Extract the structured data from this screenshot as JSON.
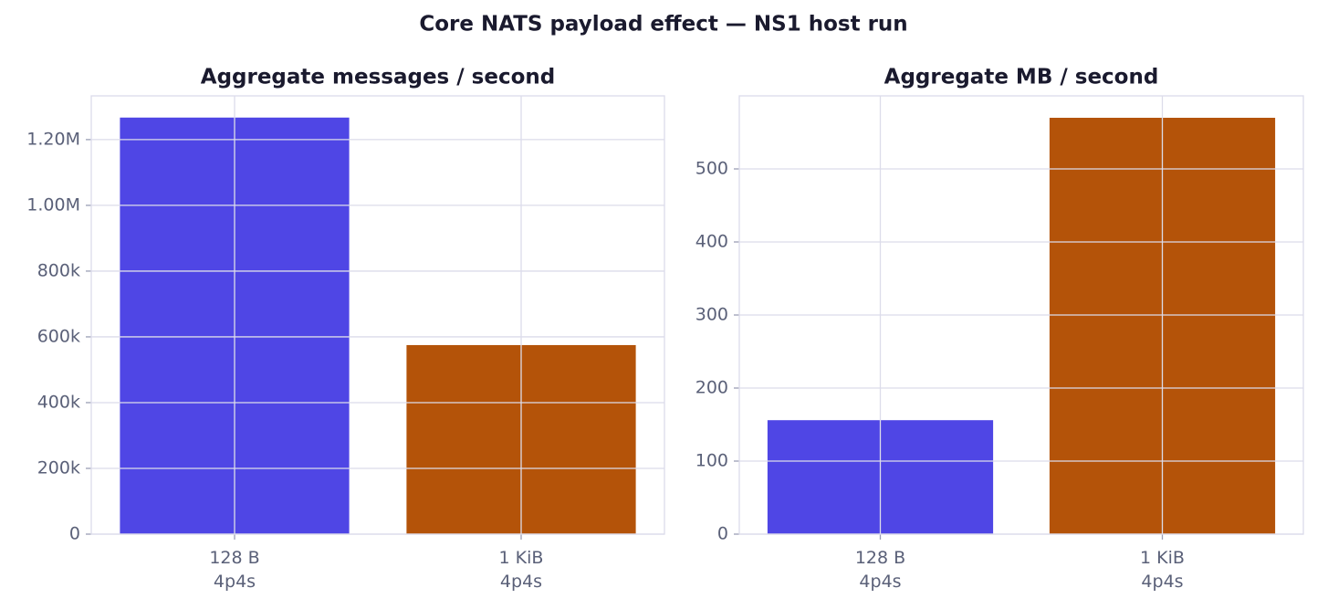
{
  "title": "Core NATS payload effect — NS1 host run",
  "chart_data": [
    {
      "type": "bar",
      "title": "Aggregate messages / second",
      "categories": [
        "128 B\n4p4s",
        "1 KiB\n4p4s"
      ],
      "values": [
        1267000,
        575000
      ],
      "colors": [
        "#4f46e5",
        "#b45309"
      ],
      "ylim": [
        0,
        1333000
      ],
      "yticks": [
        0,
        {
          "value": 200000,
          "label": "200k"
        },
        {
          "value": 400000,
          "label": "400k"
        },
        {
          "value": 600000,
          "label": "600k"
        },
        {
          "value": 800000,
          "label": "800k"
        },
        {
          "value": 1000000,
          "label": "1.00M"
        },
        {
          "value": 1200000,
          "label": "1.20M"
        }
      ],
      "grid": true
    },
    {
      "type": "bar",
      "title": "Aggregate MB / second",
      "categories": [
        "128 B\n4p4s",
        "1 KiB\n4p4s"
      ],
      "values": [
        156,
        570
      ],
      "colors": [
        "#4f46e5",
        "#b45309"
      ],
      "ylim": [
        0,
        600
      ],
      "yticks": [
        0,
        100,
        200,
        300,
        400,
        500
      ],
      "grid": true
    }
  ]
}
